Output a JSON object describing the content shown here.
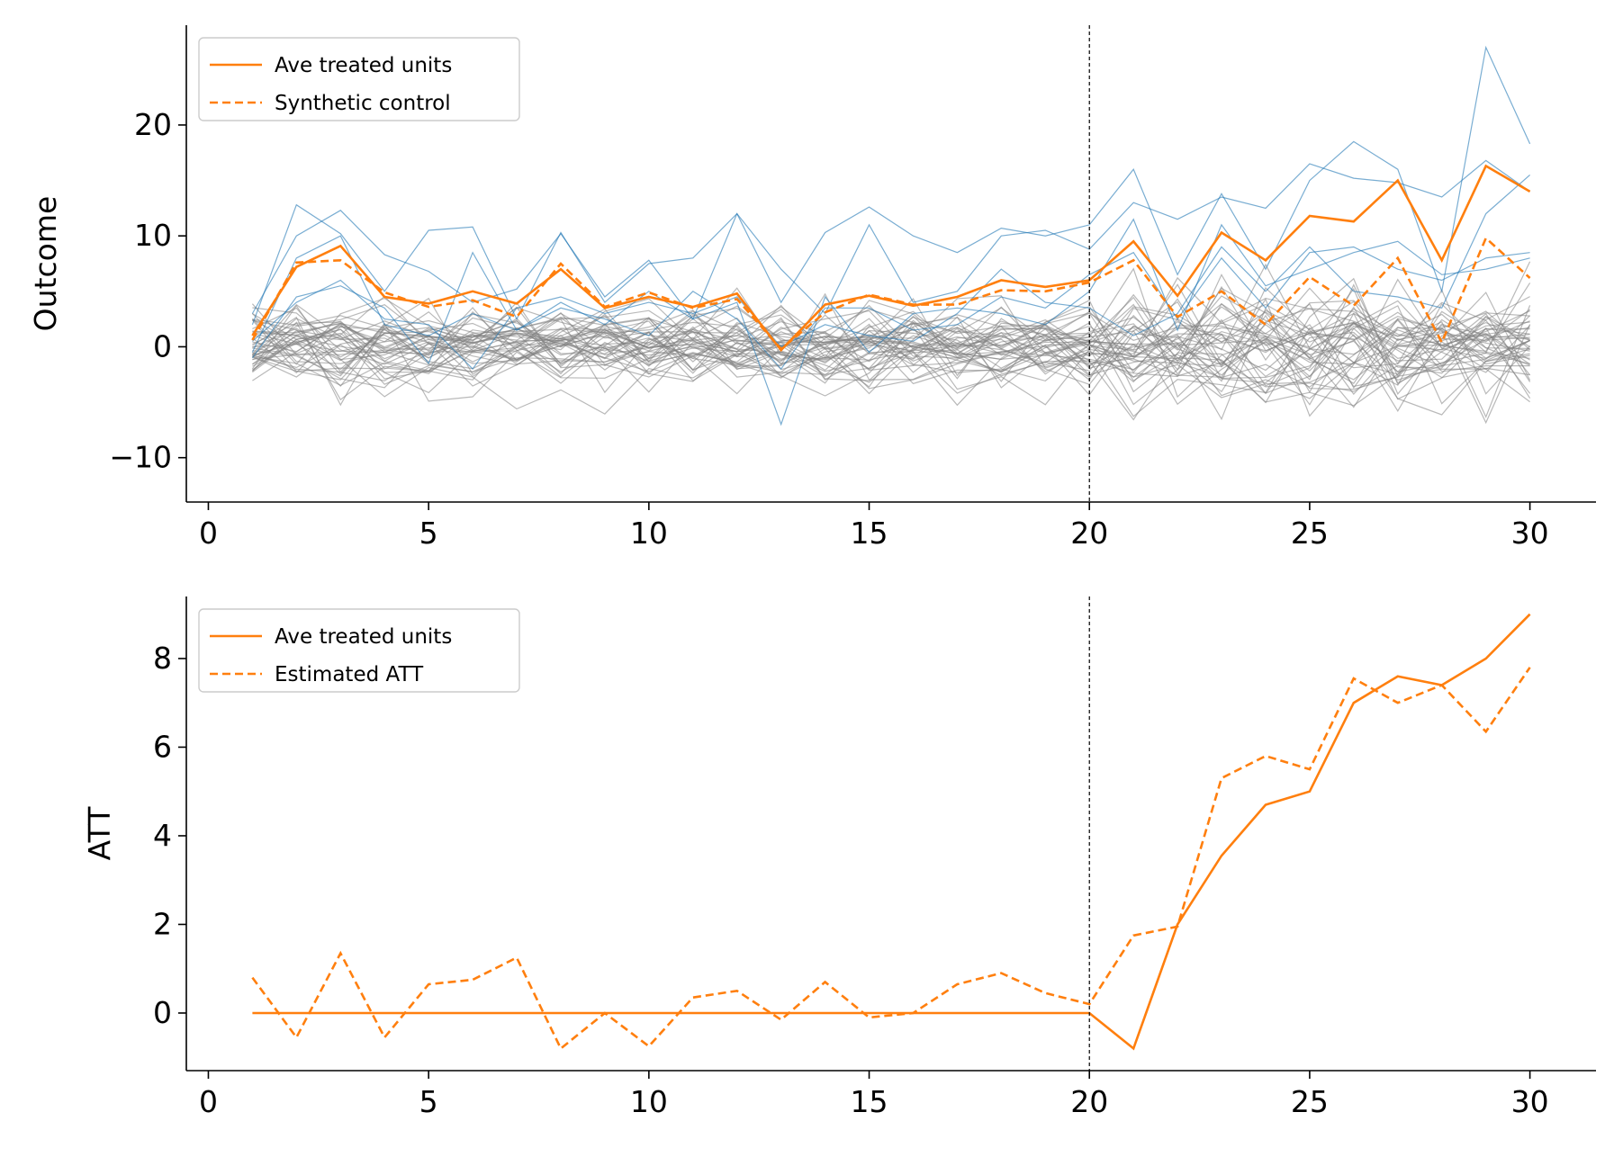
{
  "chart_data": [
    {
      "type": "line",
      "ylabel": "Outcome",
      "xlabel": "",
      "xlim": [
        -0.5,
        31.5
      ],
      "ylim": [
        -14,
        29
      ],
      "xticks": [
        0,
        5,
        10,
        15,
        20,
        25,
        30
      ],
      "yticks": [
        -10,
        0,
        10,
        20
      ],
      "ytick_labels": [
        "−10",
        "0",
        "10",
        "20"
      ],
      "intervention_x": 20,
      "legend_position": "upper-left",
      "colors": {
        "treated": "#ff7f0e",
        "treated_units": "#1f77b4",
        "control_units": "#808080",
        "vline": "#000000"
      },
      "x": [
        1,
        2,
        3,
        4,
        5,
        6,
        7,
        8,
        9,
        10,
        11,
        12,
        13,
        14,
        15,
        16,
        17,
        18,
        19,
        20,
        21,
        22,
        23,
        24,
        25,
        26,
        27,
        28,
        29,
        30
      ],
      "series": [
        {
          "name": "Ave treated units",
          "style": "solid",
          "values": [
            1.0,
            7.2,
            9.1,
            4.5,
            3.9,
            5.0,
            3.9,
            7.0,
            3.5,
            4.5,
            3.6,
            4.8,
            -0.3,
            3.8,
            4.6,
            3.7,
            4.5,
            6.0,
            5.4,
            6.0,
            9.5,
            4.6,
            10.3,
            7.8,
            11.8,
            11.3,
            15.0,
            7.8,
            16.3,
            14.0
          ]
        },
        {
          "name": "Synthetic control",
          "style": "dashed",
          "values": [
            0.6,
            7.6,
            7.8,
            4.9,
            3.6,
            4.2,
            2.7,
            7.5,
            3.6,
            4.9,
            3.5,
            4.3,
            -0.2,
            3.1,
            4.7,
            3.8,
            3.8,
            5.1,
            5.0,
            5.8,
            7.8,
            2.7,
            5.0,
            2.0,
            6.3,
            3.7,
            8.0,
            0.4,
            9.8,
            6.2
          ]
        }
      ],
      "treated_unit_lines": [
        [
          2.0,
          12.8,
          10.2,
          5.0,
          10.5,
          10.8,
          2.5,
          10.3,
          4.0,
          7.5,
          8.0,
          12.0,
          4.0,
          10.3,
          12.6,
          10.0,
          8.5,
          10.7,
          10.0,
          11.0,
          16.0,
          6.5,
          13.8,
          7.0,
          15.0,
          18.5,
          16.0,
          5.0,
          27.0,
          18.3
        ],
        [
          3.0,
          10.0,
          12.3,
          8.3,
          6.8,
          4.0,
          5.2,
          10.2,
          4.5,
          7.8,
          2.5,
          12.0,
          7.0,
          3.0,
          11.0,
          4.0,
          5.0,
          10.0,
          10.5,
          8.8,
          13.0,
          11.5,
          13.5,
          12.5,
          16.5,
          15.2,
          14.8,
          13.5,
          16.8,
          14.0
        ],
        [
          -0.5,
          8.0,
          10.0,
          2.0,
          1.0,
          3.0,
          1.5,
          4.0,
          2.0,
          5.0,
          2.5,
          4.0,
          -7.0,
          4.5,
          -0.5,
          3.0,
          3.5,
          3.0,
          2.0,
          5.0,
          11.5,
          1.5,
          11.0,
          5.5,
          7.0,
          8.5,
          9.5,
          6.5,
          7.0,
          8.0
        ],
        [
          -1.0,
          4.5,
          5.5,
          3.5,
          -1.5,
          8.5,
          1.5,
          3.5,
          2.5,
          1.0,
          5.0,
          2.5,
          -2.0,
          3.5,
          3.5,
          1.5,
          2.0,
          4.5,
          3.5,
          6.5,
          8.5,
          2.5,
          8.0,
          3.5,
          8.5,
          9.0,
          7.0,
          6.0,
          8.0,
          8.5
        ],
        [
          0.5,
          4.0,
          6.0,
          2.5,
          2.0,
          -2.0,
          3.5,
          4.5,
          3.0,
          4.0,
          3.0,
          4.5,
          0.0,
          2.0,
          1.0,
          0.5,
          3.0,
          7.0,
          4.0,
          3.5,
          1.0,
          3.0,
          9.0,
          5.0,
          9.0,
          5.0,
          4.5,
          3.5,
          12.0,
          15.5
        ]
      ]
    },
    {
      "type": "line",
      "ylabel": "ATT",
      "xlabel": "",
      "xlim": [
        -0.5,
        31.5
      ],
      "ylim": [
        -1.3,
        9.4
      ],
      "xticks": [
        0,
        5,
        10,
        15,
        20,
        25,
        30
      ],
      "yticks": [
        0,
        2,
        4,
        6,
        8
      ],
      "ytick_labels": [
        "0",
        "2",
        "4",
        "6",
        "8"
      ],
      "intervention_x": 20,
      "legend_position": "upper-left",
      "x": [
        1,
        2,
        3,
        4,
        5,
        6,
        7,
        8,
        9,
        10,
        11,
        12,
        13,
        14,
        15,
        16,
        17,
        18,
        19,
        20,
        21,
        22,
        23,
        24,
        25,
        26,
        27,
        28,
        29,
        30
      ],
      "series": [
        {
          "name": "Ave treated units",
          "style": "solid",
          "values": [
            0,
            0,
            0,
            0,
            0,
            0,
            0,
            0,
            0,
            0,
            0,
            0,
            0,
            0,
            0,
            0,
            0,
            0,
            0,
            0,
            -0.8,
            2.0,
            3.55,
            4.7,
            5.0,
            7.0,
            7.6,
            7.4,
            8.0,
            9.0
          ]
        },
        {
          "name": "Estimated ATT",
          "style": "dashed",
          "values": [
            0.8,
            -0.55,
            1.35,
            -0.55,
            0.65,
            0.75,
            1.25,
            -0.8,
            0.0,
            -0.75,
            0.35,
            0.5,
            -0.15,
            0.7,
            -0.1,
            0.0,
            0.65,
            0.9,
            0.45,
            0.2,
            1.75,
            1.95,
            5.3,
            5.8,
            5.5,
            7.55,
            7.0,
            7.4,
            6.35,
            7.8
          ]
        }
      ]
    }
  ]
}
